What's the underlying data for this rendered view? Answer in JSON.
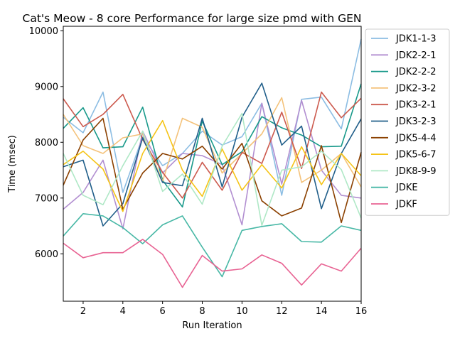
{
  "chart_data": {
    "type": "line",
    "title": "Cat's Meow - 8 core Performance for large size pmd with GEN",
    "xlabel": "Run Iteration",
    "ylabel": "Time (msec)",
    "xlim": [
      1,
      16
    ],
    "ylim": [
      5150,
      10080
    ],
    "xticks": [
      2,
      4,
      6,
      8,
      10,
      12,
      14,
      16
    ],
    "yticks": [
      6000,
      7000,
      8000,
      9000,
      10000
    ],
    "grid": false,
    "legend_position": "outside-right",
    "x": [
      1,
      2,
      3,
      4,
      5,
      6,
      7,
      8,
      9,
      10,
      11,
      12,
      13,
      14,
      15,
      16
    ],
    "series": [
      {
        "name": "JDK1-1-3",
        "color": "#8cbde3",
        "values": [
          8450,
          8170,
          8900,
          7100,
          8100,
          7580,
          7800,
          8200,
          7950,
          8100,
          8700,
          7050,
          8770,
          8810,
          8240,
          9850
        ]
      },
      {
        "name": "JDK2-2-1",
        "color": "#b28fd1",
        "values": [
          6800,
          7100,
          7680,
          6450,
          8200,
          7450,
          7800,
          7760,
          7600,
          6520,
          8700,
          7250,
          8750,
          7500,
          7050,
          7000
        ]
      },
      {
        "name": "JDK2-2-2",
        "color": "#18998a",
        "values": [
          8250,
          8620,
          7900,
          7920,
          8630,
          7320,
          6840,
          8380,
          7600,
          7830,
          8460,
          8260,
          8130,
          7920,
          7930,
          9050
        ]
      },
      {
        "name": "JDK2-3-2",
        "color": "#f4c27a",
        "values": [
          8500,
          7940,
          7800,
          8080,
          8150,
          7300,
          8430,
          8270,
          7450,
          7800,
          8150,
          8800,
          7280,
          7500,
          7800,
          7200
        ]
      },
      {
        "name": "JDK3-2-1",
        "color": "#cc5a4e",
        "values": [
          8780,
          8280,
          8500,
          8860,
          8050,
          7460,
          7000,
          7640,
          7140,
          7820,
          7620,
          8540,
          7530,
          8900,
          8440,
          8790
        ]
      },
      {
        "name": "JDK3-2-3",
        "color": "#215f8a",
        "values": [
          7560,
          7680,
          6500,
          6900,
          8080,
          7280,
          7220,
          8430,
          7200,
          8450,
          9060,
          7950,
          8290,
          6810,
          7800,
          8420
        ]
      },
      {
        "name": "JDK5-4-4",
        "color": "#8b4000",
        "values": [
          7230,
          8040,
          8430,
          6800,
          7450,
          7800,
          7700,
          7930,
          7520,
          7980,
          6950,
          6680,
          6820,
          7940,
          6560,
          7820
        ]
      },
      {
        "name": "JDK5-6-7",
        "color": "#f5c417",
        "values": [
          7600,
          7840,
          7520,
          6760,
          7800,
          8390,
          7500,
          7030,
          7880,
          7140,
          7600,
          7180,
          7920,
          7240,
          7800,
          7400
        ]
      },
      {
        "name": "JDK8-9-9",
        "color": "#afe8c6",
        "values": [
          7800,
          7050,
          6880,
          7580,
          8200,
          7120,
          7430,
          6890,
          7930,
          8520,
          6510,
          7500,
          7560,
          7840,
          7510,
          6640
        ]
      },
      {
        "name": "JDKE",
        "color": "#48b8a6",
        "values": [
          6320,
          6720,
          6680,
          6470,
          6180,
          6520,
          6680,
          6120,
          5590,
          6420,
          6490,
          6540,
          6220,
          6210,
          6500,
          6420
        ]
      },
      {
        "name": "JDKF",
        "color": "#e86393",
        "values": [
          6190,
          5930,
          6020,
          6020,
          6260,
          5990,
          5400,
          5970,
          5690,
          5730,
          5980,
          5830,
          5440,
          5820,
          5690,
          6100
        ]
      }
    ]
  }
}
